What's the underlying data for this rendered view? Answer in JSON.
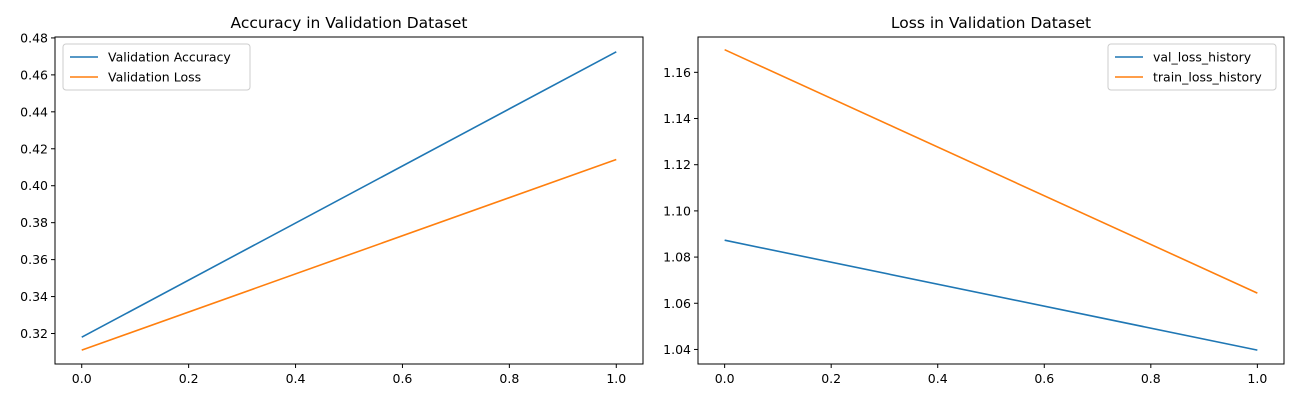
{
  "chart_data": [
    {
      "type": "line",
      "title": "Accuracy in Validation Dataset",
      "xlabel": "",
      "ylabel": "",
      "xlim": [
        -0.05,
        1.05
      ],
      "ylim": [
        0.3035,
        0.4805
      ],
      "xticks": [
        0.0,
        0.2,
        0.4,
        0.6,
        0.8,
        1.0
      ],
      "xtick_labels": [
        "0.0",
        "0.2",
        "0.4",
        "0.6",
        "0.8",
        "1.0"
      ],
      "yticks": [
        0.32,
        0.34,
        0.36,
        0.38,
        0.4,
        0.42,
        0.44,
        0.46,
        0.48
      ],
      "ytick_labels": [
        "0.32",
        "0.34",
        "0.36",
        "0.38",
        "0.40",
        "0.42",
        "0.44",
        "0.46",
        "0.48"
      ],
      "grid": false,
      "legend_position": "top-left",
      "series": [
        {
          "name": "Validation Accuracy",
          "color": "#1f77b4",
          "x": [
            0,
            1
          ],
          "y": [
            0.318,
            0.4725
          ]
        },
        {
          "name": "Validation Loss",
          "color": "#ff7f0e",
          "x": [
            0,
            1
          ],
          "y": [
            0.311,
            0.4142
          ]
        }
      ]
    },
    {
      "type": "line",
      "title": "Loss in Validation Dataset",
      "xlabel": "",
      "ylabel": "",
      "xlim": [
        -0.05,
        1.05
      ],
      "ylim": [
        1.0337,
        1.1753
      ],
      "xticks": [
        0.0,
        0.2,
        0.4,
        0.6,
        0.8,
        1.0
      ],
      "xtick_labels": [
        "0.0",
        "0.2",
        "0.4",
        "0.6",
        "0.8",
        "1.0"
      ],
      "yticks": [
        1.04,
        1.06,
        1.08,
        1.1,
        1.12,
        1.14,
        1.16
      ],
      "ytick_labels": [
        "1.04",
        "1.06",
        "1.08",
        "1.10",
        "1.12",
        "1.14",
        "1.16"
      ],
      "grid": false,
      "legend_position": "top-right",
      "series": [
        {
          "name": "val_loss_history",
          "color": "#1f77b4",
          "x": [
            0,
            1
          ],
          "y": [
            1.0873,
            1.0397
          ]
        },
        {
          "name": "train_loss_history",
          "color": "#ff7f0e",
          "x": [
            0,
            1
          ],
          "y": [
            1.1698,
            1.0644
          ]
        }
      ]
    }
  ]
}
